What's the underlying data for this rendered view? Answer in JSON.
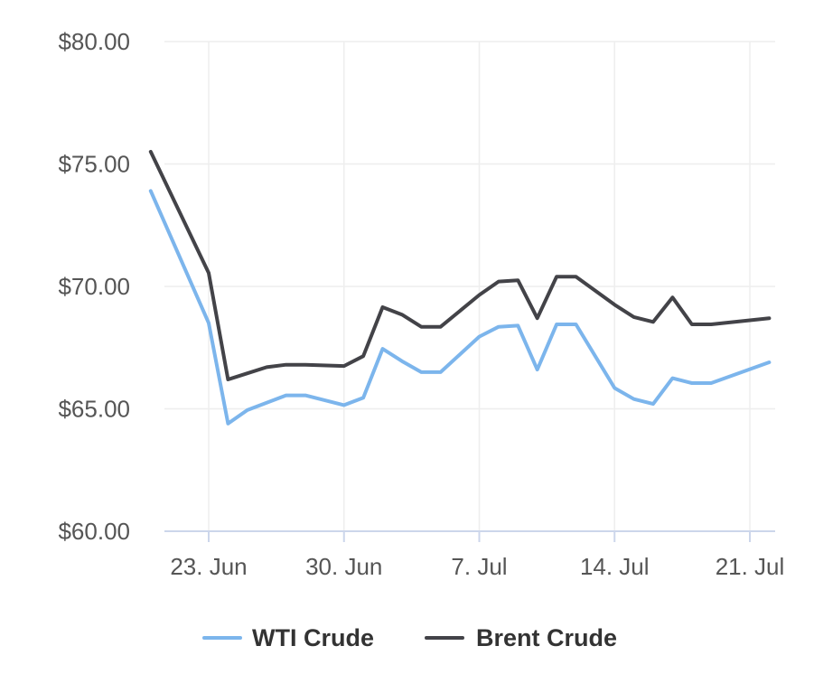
{
  "chart_data": {
    "type": "line",
    "title": "",
    "xlabel": "",
    "ylabel": "",
    "ylim": [
      60,
      80
    ],
    "yticks": [
      "$80.00",
      "$75.00",
      "$70.00",
      "$65.00",
      "$60.00"
    ],
    "ytick_values": [
      80,
      75,
      70,
      65,
      60
    ],
    "xticks": [
      "23. Jun",
      "30. Jun",
      "7. Jul",
      "14. Jul",
      "21. Jul"
    ],
    "xtick_dates": [
      "2025-06-23",
      "2025-06-30",
      "2025-07-07",
      "2025-07-14",
      "2025-07-21"
    ],
    "x": [
      "2025-06-20",
      "2025-06-23",
      "2025-06-24",
      "2025-06-25",
      "2025-06-26",
      "2025-06-27",
      "2025-06-28",
      "2025-06-30",
      "2025-07-01",
      "2025-07-02",
      "2025-07-03",
      "2025-07-04",
      "2025-07-05",
      "2025-07-07",
      "2025-07-08",
      "2025-07-09",
      "2025-07-10",
      "2025-07-11",
      "2025-07-12",
      "2025-07-14",
      "2025-07-15",
      "2025-07-16",
      "2025-07-17",
      "2025-07-18",
      "2025-07-19",
      "2025-07-22"
    ],
    "grid": true,
    "legend_position": "bottom",
    "series": [
      {
        "name": "WTI Crude",
        "color": "#7cb5ec",
        "values": [
          73.9,
          68.5,
          64.4,
          64.95,
          65.25,
          65.55,
          65.55,
          65.15,
          65.45,
          67.45,
          66.95,
          66.5,
          66.5,
          67.95,
          68.35,
          68.4,
          66.6,
          68.45,
          68.45,
          65.85,
          65.4,
          65.2,
          66.25,
          66.05,
          66.05,
          66.9
        ]
      },
      {
        "name": "Brent Crude",
        "color": "#434348",
        "values": [
          75.5,
          70.55,
          66.2,
          66.45,
          66.7,
          66.8,
          66.8,
          66.75,
          67.15,
          69.15,
          68.85,
          68.35,
          68.35,
          69.65,
          70.2,
          70.25,
          68.7,
          70.4,
          70.4,
          69.25,
          68.75,
          68.55,
          69.55,
          68.45,
          68.45,
          68.7
        ]
      }
    ]
  }
}
